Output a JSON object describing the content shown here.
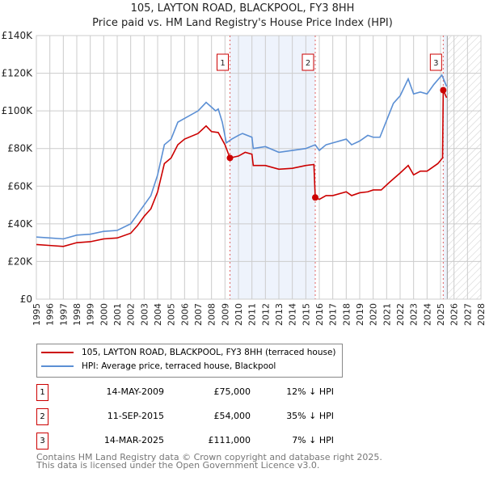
{
  "title": "105, LAYTON ROAD, BLACKPOOL, FY3 8HH",
  "subtitle": "Price paid vs. HM Land Registry's House Price Index (HPI)",
  "chart_data": {
    "type": "line",
    "xlim": [
      1995,
      2028
    ],
    "ylim": [
      0,
      140000
    ],
    "y_ticks": [
      {
        "v": 0,
        "label": "£0"
      },
      {
        "v": 20000,
        "label": "£20K"
      },
      {
        "v": 40000,
        "label": "£40K"
      },
      {
        "v": 60000,
        "label": "£60K"
      },
      {
        "v": 80000,
        "label": "£80K"
      },
      {
        "v": 100000,
        "label": "£100K"
      },
      {
        "v": 120000,
        "label": "£120K"
      },
      {
        "v": 140000,
        "label": "£140K"
      }
    ],
    "x_ticks": [
      "1995",
      "1996",
      "1997",
      "1998",
      "1999",
      "2000",
      "2001",
      "2002",
      "2003",
      "2004",
      "2005",
      "2006",
      "2007",
      "2008",
      "2009",
      "2010",
      "2011",
      "2012",
      "2013",
      "2014",
      "2015",
      "2016",
      "2017",
      "2018",
      "2019",
      "2020",
      "2021",
      "2022",
      "2023",
      "2024",
      "2025",
      "2026",
      "2027",
      "2028"
    ],
    "series": [
      {
        "name": "105, LAYTON ROAD, BLACKPOOL, FY3 8HH (terraced house)",
        "color": "#cc0000",
        "x": [
          1995,
          1996,
          1997,
          1998,
          1999,
          2000,
          2001,
          2002,
          2002.5,
          2003,
          2003.5,
          2004,
          2004.5,
          2005,
          2005.5,
          2006,
          2007,
          2007.6,
          2008,
          2008.5,
          2009,
          2009.37,
          2010,
          2010.5,
          2011,
          2011.1,
          2012,
          2013,
          2014,
          2015,
          2015.6,
          2015.7,
          2016,
          2016.5,
          2017,
          2018,
          2018.4,
          2019,
          2019.6,
          2020,
          2020.6,
          2021.2,
          2022,
          2022.6,
          2023,
          2023.5,
          2024,
          2024.8,
          2025.15,
          2025.2,
          2025.45
        ],
        "y": [
          29000,
          28500,
          28000,
          30000,
          30500,
          32000,
          32500,
          35000,
          39000,
          44000,
          48000,
          57000,
          72000,
          75000,
          82000,
          85000,
          88000,
          92000,
          89000,
          88500,
          82000,
          75000,
          76000,
          78000,
          77000,
          71000,
          71000,
          69000,
          69500,
          71000,
          71500,
          54000,
          53000,
          55000,
          55000,
          57000,
          55000,
          56500,
          57000,
          58000,
          58000,
          62000,
          67000,
          71000,
          66000,
          68000,
          68000,
          72000,
          75000,
          111000,
          107000
        ]
      },
      {
        "name": "HPI: Average price, terraced house, Blackpool",
        "color": "#5b8fd4",
        "x": [
          1995,
          1996,
          1997,
          1998,
          1999,
          2000,
          2001,
          2002,
          2002.5,
          2003,
          2003.5,
          2004,
          2004.5,
          2005,
          2005.5,
          2006,
          2007,
          2007.6,
          2008,
          2008.3,
          2008.5,
          2008.8,
          2009.1,
          2009.5,
          2010,
          2010.3,
          2011,
          2011.1,
          2012,
          2013,
          2014,
          2015,
          2015.7,
          2016,
          2016.5,
          2017,
          2018,
          2018.4,
          2019,
          2019.6,
          2020,
          2020.5,
          2021,
          2021.5,
          2022,
          2022.6,
          2023,
          2023.5,
          2024,
          2024.5,
          2025.1,
          2025.45
        ],
        "y": [
          33000,
          32500,
          32000,
          34000,
          34500,
          36000,
          36500,
          40000,
          45000,
          50000,
          55000,
          66000,
          82000,
          85000,
          94000,
          96000,
          100000,
          104500,
          102000,
          100000,
          101000,
          94000,
          83000,
          85000,
          87000,
          88000,
          86000,
          80000,
          81000,
          78000,
          79000,
          80000,
          82000,
          79000,
          82000,
          83000,
          85000,
          82000,
          84000,
          87000,
          86000,
          86000,
          95000,
          104000,
          108000,
          117000,
          109000,
          110000,
          109000,
          114000,
          119000,
          113000
        ]
      }
    ],
    "sales": [
      {
        "label": "1",
        "x": 2009.37,
        "y": 75000
      },
      {
        "label": "2",
        "x": 2015.7,
        "y": 54000
      },
      {
        "label": "3",
        "x": 2025.2,
        "y": 111000
      }
    ],
    "forecast_from": 2025.5
  },
  "legend": [
    "105, LAYTON ROAD, BLACKPOOL, FY3 8HH (terraced house)",
    "HPI: Average price, terraced house, Blackpool"
  ],
  "transactions": [
    {
      "num": "1",
      "date": "14-MAY-2009",
      "price": "£75,000",
      "hpi": "12% ↓ HPI"
    },
    {
      "num": "2",
      "date": "11-SEP-2015",
      "price": "£54,000",
      "hpi": "35% ↓ HPI"
    },
    {
      "num": "3",
      "date": "14-MAR-2025",
      "price": "£111,000",
      "hpi": "7% ↓ HPI"
    }
  ],
  "footer": [
    "Contains HM Land Registry data © Crown copyright and database right 2025.",
    "This data is licensed under the Open Government Licence v3.0."
  ]
}
